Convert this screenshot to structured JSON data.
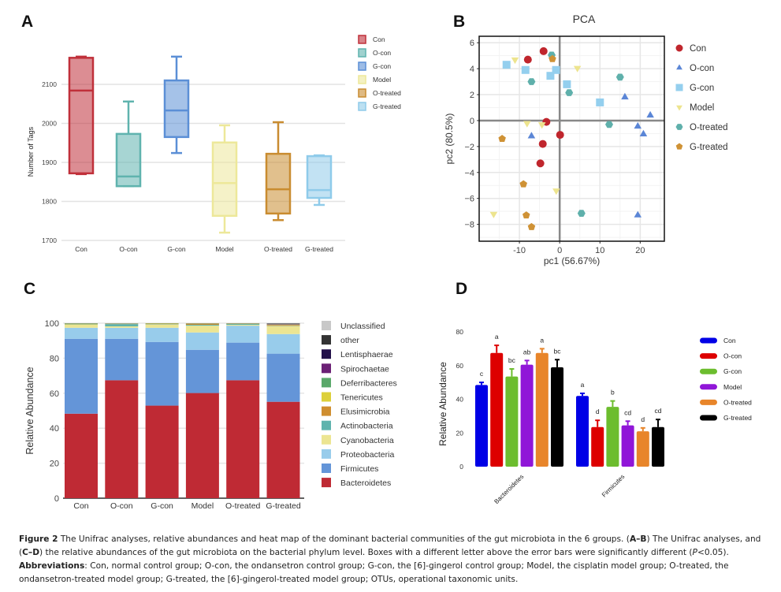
{
  "panels": {
    "A": {
      "letter": "A"
    },
    "B": {
      "letter": "B"
    },
    "C": {
      "letter": "C"
    },
    "D": {
      "letter": "D"
    }
  },
  "caption": {
    "figure_label": "Figure 2",
    "line1_text": " The Unifrac analyses, relative abundances and heat map of the dominant bacterial communities of the gut microbiota in the 6 groups. (",
    "line1_bold_ref": "A–B",
    "line1_tail": ") The Unifrac analyses, and",
    "line2_open": "(",
    "line2_bold_ref": "C–D",
    "line2_text": ") the relative abundances of the gut microbiota on the bacterial phylum level. Boxes with a different letter above the error bars were significantly different (",
    "line2_italic": "P",
    "line2_tail": "<0.05).",
    "abbrev_label": "Abbreviations",
    "abbrev_text": ": Con, normal control group; O-con, the ondansetron control group; G-con, the [6]-gingerol control group; Model, the cisplatin model group; O-treated, the ondansetron-treated model group; G-treated, the [6]-gingerol-treated model group; OTUs, operational taxonomic units."
  },
  "chart_data": [
    {
      "id": "A",
      "type": "box",
      "title": "",
      "xlabel": "",
      "ylabel": "Number of Tags",
      "ylim": [
        1700,
        2180
      ],
      "yticks": [
        1700,
        1800,
        1900,
        2000,
        2100
      ],
      "grid": true,
      "legend_position": "top-right",
      "categories": [
        "Con",
        "O-con",
        "G-con",
        "Model",
        "O-treated",
        "G-treated"
      ],
      "colors": [
        "#c0303a",
        "#5fb3ae",
        "#5b8fd6",
        "#ede89a",
        "#c98c30",
        "#8fcbea"
      ],
      "boxes": [
        {
          "name": "Con",
          "min": 1870,
          "q1": 1872,
          "median": 2084,
          "q3": 2168,
          "max": 2171
        },
        {
          "name": "O-con",
          "min": 1839,
          "q1": 1839,
          "median": 1864,
          "q3": 1973,
          "max": 2056
        },
        {
          "name": "G-con",
          "min": 1924,
          "q1": 1965,
          "median": 2033,
          "q3": 2110,
          "max": 2171
        },
        {
          "name": "Model",
          "min": 1720,
          "q1": 1763,
          "median": 1847,
          "q3": 1951,
          "max": 1995
        },
        {
          "name": "O-treated",
          "min": 1752,
          "q1": 1769,
          "median": 1831,
          "q3": 1922,
          "max": 2003
        },
        {
          "name": "G-treated",
          "min": 1791,
          "q1": 1809,
          "median": 1829,
          "q3": 1916,
          "max": 1918
        }
      ]
    },
    {
      "id": "B",
      "type": "scatter",
      "title": "PCA",
      "xlabel": "pc1 (56.67%)",
      "ylabel": "pc2 (80.5%)",
      "xlim": [
        -20,
        26
      ],
      "ylim": [
        -9.3,
        6.5
      ],
      "xticks": [
        -10,
        0,
        10,
        20
      ],
      "yticks": [
        -8,
        -6,
        -4,
        -2,
        0,
        2,
        4,
        6
      ],
      "grid": true,
      "legend_position": "right",
      "series": [
        {
          "name": "Con",
          "marker": "circle",
          "color": "#c0262d",
          "points": [
            [
              -4.0,
              5.35
            ],
            [
              -7.9,
              4.7
            ],
            [
              -3.3,
              -0.1
            ],
            [
              0.1,
              -1.1
            ],
            [
              -4.2,
              -1.8
            ],
            [
              -4.8,
              -3.3
            ]
          ]
        },
        {
          "name": "O-con",
          "marker": "triangle-up",
          "color": "#5b86d6",
          "points": [
            [
              16.2,
              1.8
            ],
            [
              22.5,
              0.4
            ],
            [
              19.4,
              -0.45
            ],
            [
              20.8,
              -1.05
            ],
            [
              -7.0,
              -1.2
            ],
            [
              19.4,
              -7.3
            ]
          ]
        },
        {
          "name": "G-con",
          "marker": "square",
          "color": "#94cfee",
          "points": [
            [
              -13.2,
              4.3
            ],
            [
              -8.5,
              3.9
            ],
            [
              -0.9,
              3.9
            ],
            [
              -2.3,
              3.45
            ],
            [
              1.8,
              2.8
            ],
            [
              10.0,
              1.4
            ]
          ]
        },
        {
          "name": "Model",
          "marker": "triangle-down",
          "color": "#ede48e",
          "points": [
            [
              -11.1,
              4.7
            ],
            [
              4.4,
              4.05
            ],
            [
              -8.1,
              -0.2
            ],
            [
              -4.4,
              -0.3
            ],
            [
              -0.85,
              -5.4
            ],
            [
              -16.4,
              -7.2
            ]
          ]
        },
        {
          "name": "O-treated",
          "marker": "hexagon",
          "color": "#5fb0ab",
          "points": [
            [
              -2.0,
              5.05
            ],
            [
              -7.0,
              3.0
            ],
            [
              2.35,
              2.15
            ],
            [
              15.0,
              3.35
            ],
            [
              12.3,
              -0.3
            ],
            [
              5.4,
              -7.15
            ]
          ]
        },
        {
          "name": "G-treated",
          "marker": "pentagon",
          "color": "#cf9235",
          "points": [
            [
              -1.8,
              4.75
            ],
            [
              -14.3,
              -1.4
            ],
            [
              -9.0,
              -4.9
            ],
            [
              -8.3,
              -7.3
            ],
            [
              -7.0,
              -8.2
            ]
          ]
        }
      ]
    },
    {
      "id": "C",
      "type": "bar",
      "stacked": true,
      "title": "",
      "xlabel": "",
      "ylabel": "Relative Abundance",
      "ylim": [
        0,
        100
      ],
      "yticks": [
        0,
        20,
        40,
        60,
        80,
        100
      ],
      "grid": true,
      "legend_position": "right",
      "categories": [
        "Con",
        "O-con",
        "G-con",
        "Model",
        "O-treated",
        "G-treated"
      ],
      "series": [
        {
          "name": "Bacteroidetes",
          "color": "#bf2a34",
          "values": [
            48.3,
            67.4,
            52.9,
            60.1,
            67.4,
            55.1
          ]
        },
        {
          "name": "Firmicutes",
          "color": "#6495d8",
          "values": [
            42.8,
            23.7,
            36.4,
            24.7,
            21.5,
            27.5
          ]
        },
        {
          "name": "Proteobacteria",
          "color": "#98cceb",
          "values": [
            6.3,
            6.3,
            8.1,
            9.9,
            9.7,
            11.2
          ]
        },
        {
          "name": "Cyanobacteria",
          "color": "#ece592",
          "values": [
            1.7,
            0.8,
            1.8,
            3.9,
            0.5,
            4.5
          ]
        },
        {
          "name": "Actinobacteria",
          "color": "#5fb3ad",
          "values": [
            0.2,
            1.3,
            0.2,
            0.5,
            0.5,
            0.2
          ]
        },
        {
          "name": "Elusimicrobia",
          "color": "#cf8e2f",
          "values": [
            0.1,
            0.1,
            0.1,
            0.6,
            0.1,
            0.5
          ]
        },
        {
          "name": "Tenericutes",
          "color": "#ddd03a",
          "values": [
            0.3,
            0.1,
            0.3,
            0.1,
            0.1,
            0.2
          ]
        },
        {
          "name": "Deferribacteres",
          "color": "#5aa86a",
          "values": [
            0.2,
            0.1,
            0.1,
            0.1,
            0.1,
            0.1
          ]
        },
        {
          "name": "Spirochaetae",
          "color": "#6b2075",
          "values": [
            0.0,
            0.0,
            0.0,
            0.0,
            0.0,
            0.2
          ]
        },
        {
          "name": "Lentisphaerae",
          "color": "#22104a",
          "values": [
            0.0,
            0.0,
            0.0,
            0.0,
            0.0,
            0.1
          ]
        },
        {
          "name": "other",
          "color": "#333333",
          "values": [
            0.1,
            0.1,
            0.1,
            0.1,
            0.1,
            0.3
          ]
        },
        {
          "name": "Unclassified",
          "color": "#c8c8c8",
          "values": [
            0.0,
            0.0,
            0.0,
            0.0,
            0.0,
            0.1
          ]
        }
      ],
      "legend_order": [
        "Unclassified",
        "other",
        "Lentisphaerae",
        "Spirochaetae",
        "Deferribacteres",
        "Tenericutes",
        "Elusimicrobia",
        "Actinobacteria",
        "Cyanobacteria",
        "Proteobacteria",
        "Firmicutes",
        "Bacteroidetes"
      ]
    },
    {
      "id": "D",
      "type": "bar",
      "grouped": true,
      "title": "",
      "xlabel": "",
      "ylabel": "Relative  Abundance",
      "ylim": [
        0,
        80
      ],
      "yticks": [
        0,
        20,
        40,
        60,
        80
      ],
      "grid": false,
      "legend_position": "right",
      "categories": [
        "Bacteroidetes",
        "Firmicutes"
      ],
      "series": [
        {
          "name": "Con",
          "color": "#0000e6",
          "values": [
            48.5,
            42.0
          ],
          "errors": [
            1.5,
            1.5
          ],
          "letters": [
            "c",
            "a"
          ]
        },
        {
          "name": "O-con",
          "color": "#dd0000",
          "values": [
            67.5,
            23.5
          ],
          "errors": [
            4.5,
            4.0
          ],
          "letters": [
            "a",
            "d"
          ]
        },
        {
          "name": "G-con",
          "color": "#6cbd2e",
          "values": [
            53.5,
            35.5
          ],
          "errors": [
            4.5,
            3.5
          ],
          "letters": [
            "bc",
            "b"
          ]
        },
        {
          "name": "Model",
          "color": "#9016d8",
          "values": [
            60.5,
            24.5
          ],
          "errors": [
            2.5,
            2.5
          ],
          "letters": [
            "ab",
            "cd"
          ]
        },
        {
          "name": "O-treated",
          "color": "#e8852a",
          "values": [
            67.5,
            21.0
          ],
          "errors": [
            2.5,
            2.0
          ],
          "letters": [
            "a",
            "d"
          ]
        },
        {
          "name": "G-treated",
          "color": "#000000",
          "values": [
            59.0,
            23.5
          ],
          "errors": [
            4.5,
            4.5
          ],
          "letters": [
            "bc",
            "cd"
          ]
        }
      ]
    }
  ]
}
